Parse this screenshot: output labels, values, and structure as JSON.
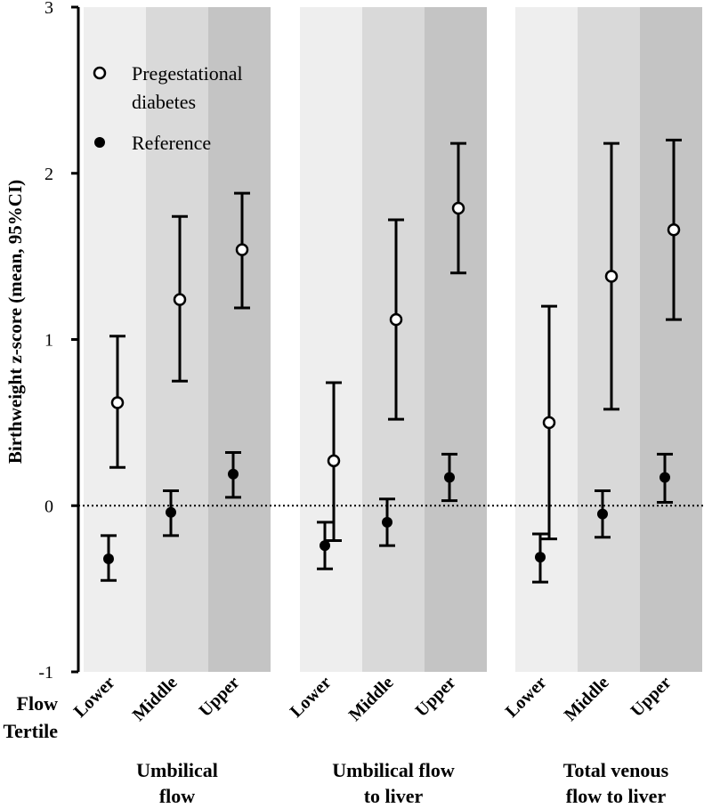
{
  "chart_data": {
    "type": "scatter",
    "title": "",
    "ylabel": "Birthweight z-score (mean, 95%CI)",
    "ylim": [
      -1,
      3
    ],
    "yticks": [
      -1,
      0,
      1,
      2,
      3
    ],
    "reference_line": 0,
    "grid": false,
    "legend_position": "top-left",
    "x_axis_title": [
      "Flow",
      "Tertile"
    ],
    "groups": [
      {
        "label": [
          "Umbilical",
          "flow"
        ],
        "tertiles": [
          "Lower",
          "Middle",
          "Upper"
        ]
      },
      {
        "label": [
          "Umbilical flow",
          "to liver"
        ],
        "tertiles": [
          "Lower",
          "Middle",
          "Upper"
        ]
      },
      {
        "label": [
          "Total venous",
          "flow to liver"
        ],
        "tertiles": [
          "Lower",
          "Middle",
          "Upper"
        ]
      }
    ],
    "band_colors": [
      "#eeeeee",
      "#d9d9d9",
      "#c4c4c4"
    ],
    "series": [
      {
        "name": "Pregestational diabetes",
        "legend_lines": [
          "Pregestational",
          "diabetes"
        ],
        "marker": "open-circle",
        "values": [
          [
            0.62,
            1.24,
            1.54
          ],
          [
            0.27,
            1.12,
            1.79
          ],
          [
            0.5,
            1.38,
            1.66
          ]
        ],
        "ci_low": [
          [
            0.23,
            0.75,
            1.19
          ],
          [
            -0.21,
            0.52,
            1.4
          ],
          [
            -0.2,
            0.58,
            1.12
          ]
        ],
        "ci_high": [
          [
            1.02,
            1.74,
            1.88
          ],
          [
            0.74,
            1.72,
            2.18
          ],
          [
            1.2,
            2.18,
            2.2
          ]
        ]
      },
      {
        "name": "Reference",
        "legend_lines": [
          "Reference"
        ],
        "marker": "filled-circle",
        "values": [
          [
            -0.32,
            -0.04,
            0.19
          ],
          [
            -0.24,
            -0.1,
            0.17
          ],
          [
            -0.31,
            -0.05,
            0.17
          ]
        ],
        "ci_low": [
          [
            -0.45,
            -0.18,
            0.05
          ],
          [
            -0.38,
            -0.24,
            0.03
          ],
          [
            -0.46,
            -0.19,
            0.02
          ]
        ],
        "ci_high": [
          [
            -0.18,
            0.09,
            0.32
          ],
          [
            -0.1,
            0.04,
            0.31
          ],
          [
            -0.17,
            0.09,
            0.31
          ]
        ]
      }
    ]
  }
}
